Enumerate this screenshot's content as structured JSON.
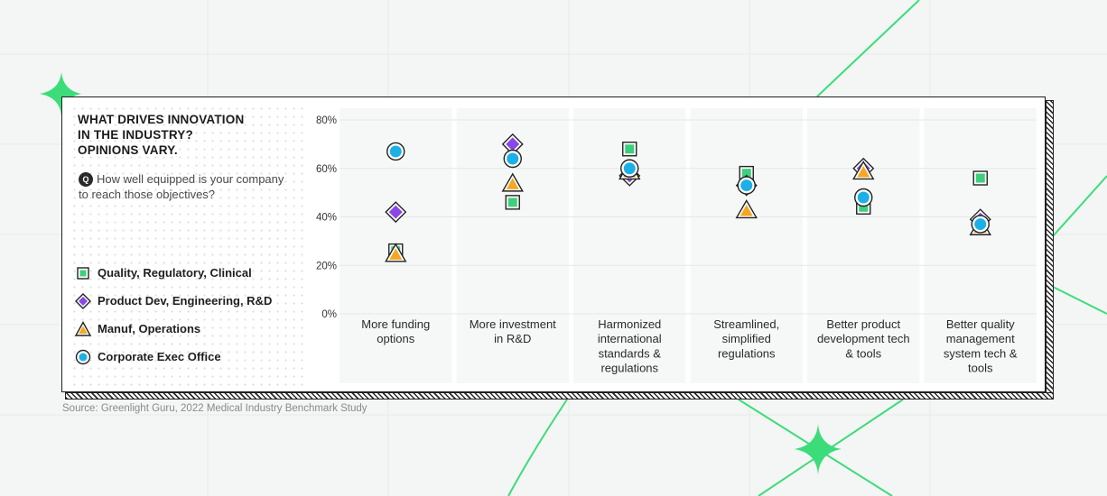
{
  "title": "WHAT DRIVES INNOVATION\nIN THE INDUSTRY?\nOPINIONS VARY.",
  "question": {
    "badge": "Q",
    "text": "How well equipped is your company to reach those objectives?"
  },
  "source": "Source: Greenlight Guru, 2022 Medical Industry Benchmark Study",
  "colors": {
    "green": "#3ecf7c",
    "purple": "#8a47e8",
    "orange": "#f5a623",
    "blue": "#1cb0e6",
    "accent_line": "#3ddc7a",
    "outline": "#222222"
  },
  "chart_data": {
    "type": "scatter",
    "categories": [
      "More funding options",
      "More investment in R&D",
      "Harmonized international standards & regulations",
      "Streamlined, simplified regulations",
      "Better product development tech & tools",
      "Better quality management system tech & tools"
    ],
    "y_ticks": [
      "0%",
      "20%",
      "40%",
      "60%",
      "80%"
    ],
    "ylim": [
      0,
      80
    ],
    "grid": true,
    "legend_position": "left",
    "series": [
      {
        "name": "Quality, Regulatory, Clinical",
        "marker": "square",
        "color": "#3ecf7c",
        "values": [
          26,
          46,
          68,
          58,
          44,
          56
        ]
      },
      {
        "name": "Product Dev, Engineering, R&D",
        "marker": "diamond",
        "color": "#8a47e8",
        "values": [
          42,
          70,
          57,
          53,
          60,
          39
        ]
      },
      {
        "name": "Manuf, Operations",
        "marker": "triangle",
        "color": "#f5a623",
        "values": [
          25,
          54,
          59,
          43,
          59,
          36
        ]
      },
      {
        "name": "Corporate Exec Office",
        "marker": "circle",
        "color": "#1cb0e6",
        "values": [
          67,
          64,
          60,
          53,
          48,
          37
        ]
      }
    ]
  }
}
